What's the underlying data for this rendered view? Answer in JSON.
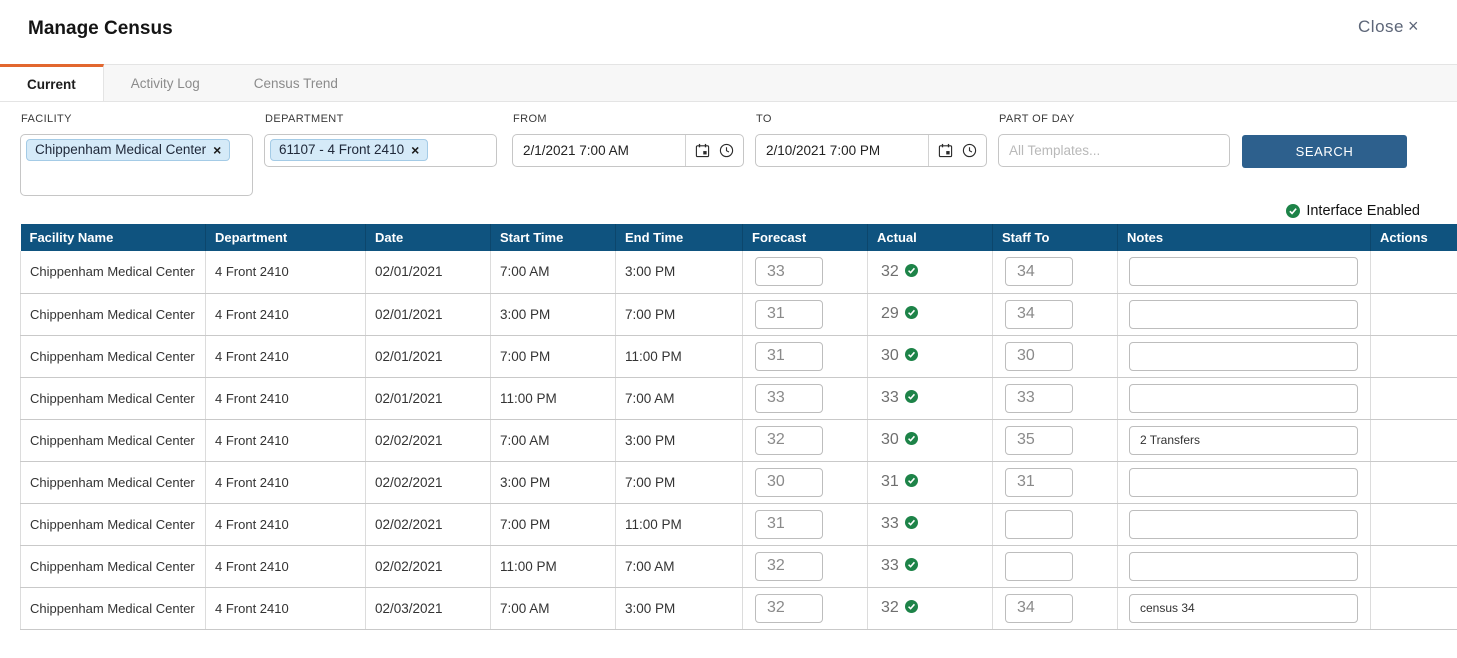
{
  "header": {
    "title": "Manage Census",
    "close_label": "Close",
    "close_x": "×"
  },
  "tabs": [
    {
      "label": "Current",
      "active": true
    },
    {
      "label": "Activity Log",
      "active": false
    },
    {
      "label": "Census Trend",
      "active": false
    }
  ],
  "filters": {
    "facility": {
      "label": "FACILITY",
      "chip": "Chippenham Medical Center",
      "chip_remove": "×"
    },
    "department": {
      "label": "DEPARTMENT",
      "chip": "61107 - 4 Front 2410",
      "chip_remove": "×"
    },
    "from": {
      "label": "FROM",
      "value": "2/1/2021 7:00 AM"
    },
    "to": {
      "label": "TO",
      "value": "2/10/2021 7:00 PM"
    },
    "part_of_day": {
      "label": "PART OF DAY",
      "placeholder": "All Templates..."
    },
    "search_label": "SEARCH"
  },
  "status": {
    "interface_enabled_label": "Interface Enabled"
  },
  "table": {
    "columns": [
      "Facility Name",
      "Department",
      "Date",
      "Start Time",
      "End Time",
      "Forecast",
      "Actual",
      "Staff To",
      "Notes",
      "Actions"
    ],
    "rows": [
      {
        "facility": "Chippenham Medical Center",
        "department": "4 Front 2410",
        "date": "02/01/2021",
        "start": "7:00 AM",
        "end": "3:00 PM",
        "forecast": "33",
        "actual": "32",
        "actual_verified": true,
        "staff_to": "34",
        "notes": ""
      },
      {
        "facility": "Chippenham Medical Center",
        "department": "4 Front 2410",
        "date": "02/01/2021",
        "start": "3:00 PM",
        "end": "7:00 PM",
        "forecast": "31",
        "actual": "29",
        "actual_verified": true,
        "staff_to": "34",
        "notes": ""
      },
      {
        "facility": "Chippenham Medical Center",
        "department": "4 Front 2410",
        "date": "02/01/2021",
        "start": "7:00 PM",
        "end": "11:00 PM",
        "forecast": "31",
        "actual": "30",
        "actual_verified": true,
        "staff_to": "30",
        "notes": ""
      },
      {
        "facility": "Chippenham Medical Center",
        "department": "4 Front 2410",
        "date": "02/01/2021",
        "start": "11:00 PM",
        "end": "7:00 AM",
        "forecast": "33",
        "actual": "33",
        "actual_verified": true,
        "staff_to": "33",
        "notes": ""
      },
      {
        "facility": "Chippenham Medical Center",
        "department": "4 Front 2410",
        "date": "02/02/2021",
        "start": "7:00 AM",
        "end": "3:00 PM",
        "forecast": "32",
        "actual": "30",
        "actual_verified": true,
        "staff_to": "35",
        "notes": "2 Transfers"
      },
      {
        "facility": "Chippenham Medical Center",
        "department": "4 Front 2410",
        "date": "02/02/2021",
        "start": "3:00 PM",
        "end": "7:00 PM",
        "forecast": "30",
        "actual": "31",
        "actual_verified": true,
        "staff_to": "31",
        "notes": ""
      },
      {
        "facility": "Chippenham Medical Center",
        "department": "4 Front 2410",
        "date": "02/02/2021",
        "start": "7:00 PM",
        "end": "11:00 PM",
        "forecast": "31",
        "actual": "33",
        "actual_verified": true,
        "staff_to": "",
        "notes": ""
      },
      {
        "facility": "Chippenham Medical Center",
        "department": "4 Front 2410",
        "date": "02/02/2021",
        "start": "11:00 PM",
        "end": "7:00 AM",
        "forecast": "32",
        "actual": "33",
        "actual_verified": true,
        "staff_to": "",
        "notes": ""
      },
      {
        "facility": "Chippenham Medical Center",
        "department": "4 Front 2410",
        "date": "02/03/2021",
        "start": "7:00 AM",
        "end": "3:00 PM",
        "forecast": "32",
        "actual": "32",
        "actual_verified": true,
        "staff_to": "34",
        "notes": "census 34"
      }
    ]
  },
  "colors": {
    "tab_accent_orange": "#e2672f",
    "table_header_blue": "#0f537f",
    "search_button_blue": "#2d608d",
    "chip_blue_bg": "#d5eaf8",
    "chip_blue_border": "#a4cbe6",
    "success_green": "#1d8348"
  }
}
